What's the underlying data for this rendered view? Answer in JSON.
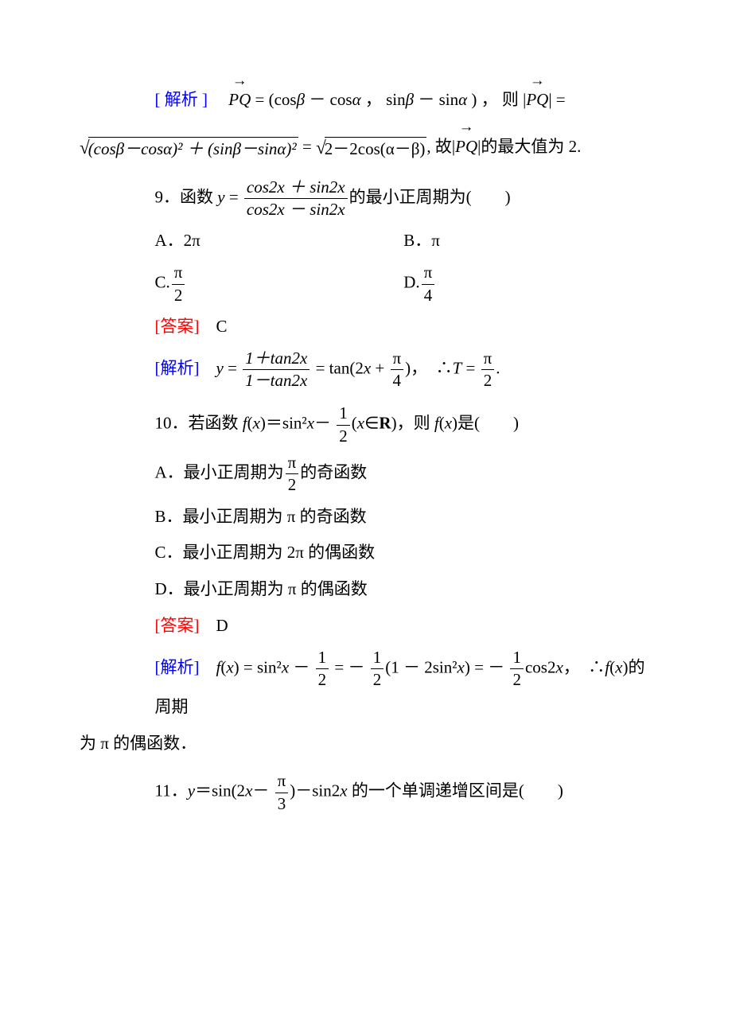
{
  "colors": {
    "text": "#000000",
    "blue": "#0000ff",
    "red": "#ff0000",
    "background": "#ffffff"
  },
  "typography": {
    "body_font": "Times New Roman / SimSun",
    "body_size_pt": 16,
    "line_height": 1.9
  },
  "labels": {
    "analysis": "[ 解析 ]",
    "analysis_tight": "[解析]",
    "answer": "[答案]"
  },
  "q8_analysis": {
    "part1a": " = (cos",
    "beta": "β",
    "part1b": " － cos",
    "alpha": "α",
    "part1c": " ， sin",
    "part1d": " － sin",
    "part1e": ") ， 则 |",
    "part1f": "|  =",
    "sqrt1": "(cosβ－cosα)² ＋ (sinβ－sinα)²",
    "eq": " = ",
    "sqrt2": "2－2cos(α－β)",
    "tail": ", 故|",
    "tail2": "|的最大值为 2."
  },
  "q9": {
    "stem_a": "9．函数 ",
    "stem_b": " = ",
    "num": "cos2x ＋ sin2x",
    "den": "cos2x － sin2x",
    "stem_c": "的最小正周期为(　　)",
    "optA": "A．2π",
    "optB": "B．π",
    "optC_pre": "C.",
    "optC_num": "π",
    "optC_den": "2",
    "optD_pre": "D.",
    "optD_num": "π",
    "optD_den": "4",
    "answer_val": "C",
    "ana_a": "y",
    "ana_b": " = ",
    "ana_num": "1＋tan2x",
    "ana_den": "1－tan2x",
    "ana_c": " = tan(2",
    "ana_d": " + ",
    "ana_frac2_num": "π",
    "ana_frac2_den": "4",
    "ana_e": ")，　∴",
    "ana_T": "T",
    "ana_f": " = ",
    "ana_frac3_num": "π",
    "ana_frac3_den": "2",
    "ana_g": "."
  },
  "q10": {
    "stem_a": "10．若函数 ",
    "stem_fx": "f",
    "stem_b": "(",
    "stem_x": "x",
    "stem_c": ")＝sin²",
    "stem_d": "－",
    "frac_num": "1",
    "frac_den": "2",
    "stem_e": "(",
    "stem_f": "∈",
    "stem_R": "R",
    "stem_g": ")，则 ",
    "stem_h": "(",
    "stem_i": ")是(　　)",
    "optA_a": "A．最小正周期为",
    "optA_num": "π",
    "optA_den": "2",
    "optA_b": "的奇函数",
    "optB": "B．最小正周期为 π 的奇函数",
    "optC": "C．最小正周期为 2π 的偶函数",
    "optD": "D．最小正周期为 π 的偶函数",
    "answer_val": "D",
    "ana_a": "f",
    "ana_b": "(",
    "ana_x": "x",
    "ana_c": ") = sin²",
    "ana_d": " － ",
    "ana_e": " =  － ",
    "ana_f": "(1 － 2sin²",
    "ana_g": ") =  － ",
    "ana_h": "cos2",
    "ana_i": "，　∴",
    "ana_j": "(",
    "ana_k": ")的周期",
    "ana_tail": "为 π 的偶函数．"
  },
  "q11": {
    "stem_a": "11．",
    "stem_y": "y",
    "stem_b": "＝sin(2",
    "stem_x": "x",
    "stem_c": "－",
    "frac_num": "π",
    "frac_den": "3",
    "stem_d": ")－sin2",
    "stem_e": " 的一个单调递增区间是(　　)"
  }
}
